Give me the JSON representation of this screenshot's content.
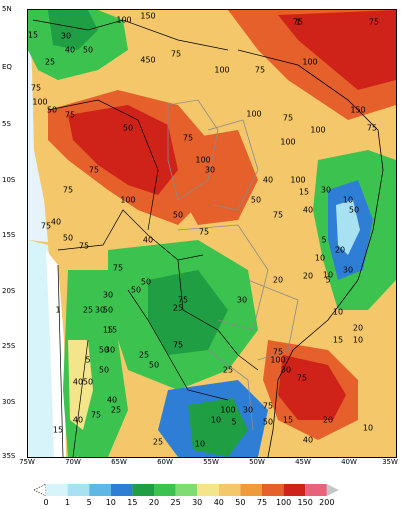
{
  "map": {
    "lat_labels": [
      "5N",
      "EQ",
      "5S",
      "10S",
      "15S",
      "20S",
      "25S",
      "30S",
      "35S"
    ],
    "lon_labels": [
      "75W",
      "70W",
      "65W",
      "60W",
      "55W",
      "50W",
      "45W",
      "40W",
      "35W"
    ],
    "contour_values": [
      "75",
      "75",
      "100",
      "150",
      "15",
      "30",
      "40",
      "50",
      "25",
      "450",
      "75",
      "100",
      "75",
      "100",
      "75",
      "100",
      "50",
      "75",
      "50",
      "75",
      "100",
      "75",
      "150",
      "100",
      "100",
      "75",
      "100",
      "75",
      "30",
      "40",
      "50",
      "75",
      "100",
      "50",
      "75",
      "100",
      "75",
      "40",
      "50",
      "75",
      "40",
      "15",
      "30",
      "10",
      "50",
      "75",
      "40",
      "75",
      "50",
      "5",
      "20",
      "30",
      "10",
      "20",
      "50",
      "75",
      "30",
      "20",
      "10",
      "5",
      "30",
      "50",
      "25",
      "10",
      "20",
      "30",
      "25",
      "50",
      "15",
      "10",
      "15",
      "25",
      "50",
      "75",
      "100",
      "75",
      "30",
      "40",
      "50",
      "25",
      "30",
      "100",
      "75",
      "50",
      "40",
      "25",
      "10",
      "5",
      "15",
      "20",
      "10",
      "40",
      "75",
      "40",
      "1",
      "5",
      "15",
      "30",
      "75",
      "50",
      "25",
      "10",
      "15",
      "1"
    ]
  },
  "colorbar": {
    "ticks": [
      "0",
      "1",
      "5",
      "10",
      "15",
      "20",
      "25",
      "30",
      "40",
      "50",
      "75",
      "100",
      "150",
      "200"
    ],
    "colors": [
      "#ffffff",
      "#d8f4fb",
      "#a8e2f2",
      "#5eb8e6",
      "#2f7ed6",
      "#1f9e43",
      "#3cc24e",
      "#7fdc73",
      "#f4e58a",
      "#f4c86a",
      "#f19a3c",
      "#e5602b",
      "#cf2218",
      "#e8627c",
      "#c6c6c6"
    ]
  }
}
